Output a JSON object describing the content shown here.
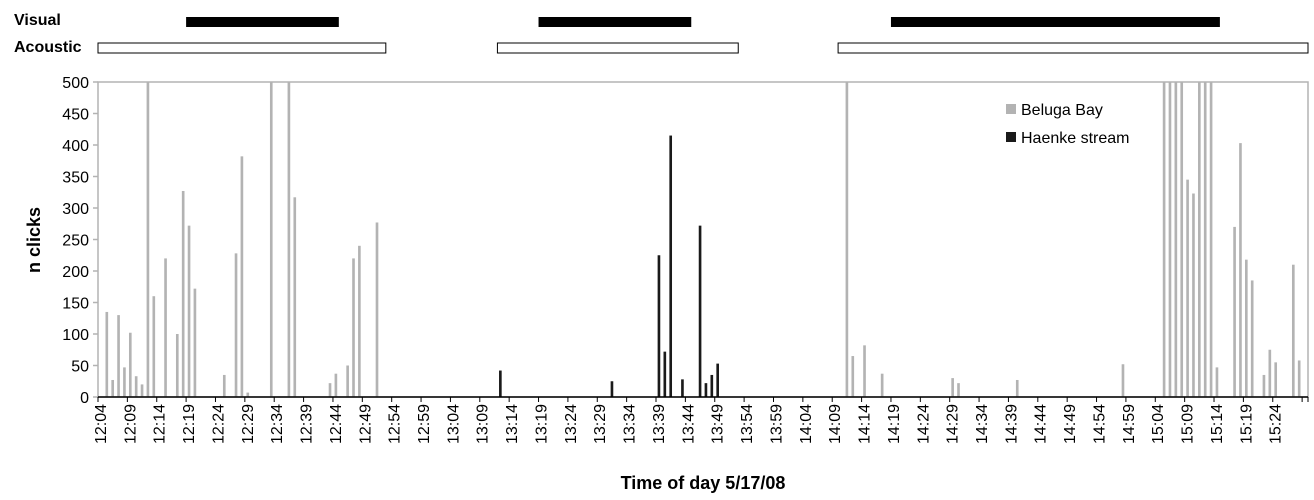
{
  "chart_data": {
    "type": "bar",
    "xlabel": "Time of day 5/17/08",
    "ylabel": "n clicks",
    "ylim": [
      0,
      500
    ],
    "yticks": [
      0,
      50,
      100,
      150,
      200,
      250,
      300,
      350,
      400,
      450,
      500
    ],
    "legend_position": "top-right",
    "time_start": "12:04",
    "time_end": "15:29",
    "tick_labels": [
      "12:04",
      "12:09",
      "12:14",
      "12:19",
      "12:24",
      "12:29",
      "12:34",
      "12:39",
      "12:44",
      "12:49",
      "12:54",
      "12:59",
      "13:04",
      "13:09",
      "13:14",
      "13:19",
      "13:24",
      "13:29",
      "13:34",
      "13:39",
      "13:44",
      "13:49",
      "13:54",
      "13:59",
      "14:04",
      "14:09",
      "14:14",
      "14:19",
      "14:24",
      "14:29",
      "14:34",
      "14:39",
      "14:44",
      "14:49",
      "14:54",
      "14:59",
      "15:04",
      "15:09",
      "15:14",
      "15:19",
      "15:24"
    ],
    "series": [
      {
        "name": "Beluga Bay",
        "color": "#b3b3b3",
        "points": [
          [
            "12:05",
            135
          ],
          [
            "12:06",
            27
          ],
          [
            "12:07",
            130
          ],
          [
            "12:08",
            47
          ],
          [
            "12:09",
            102
          ],
          [
            "12:10",
            33
          ],
          [
            "12:11",
            20
          ],
          [
            "12:12",
            500
          ],
          [
            "12:13",
            160
          ],
          [
            "12:15",
            220
          ],
          [
            "12:17",
            100
          ],
          [
            "12:18",
            327
          ],
          [
            "12:19",
            272
          ],
          [
            "12:20",
            172
          ],
          [
            "12:25",
            35
          ],
          [
            "12:27",
            228
          ],
          [
            "12:28",
            382
          ],
          [
            "12:29",
            7
          ],
          [
            "12:33",
            500
          ],
          [
            "12:36",
            500
          ],
          [
            "12:37",
            317
          ],
          [
            "12:43",
            22
          ],
          [
            "12:44",
            37
          ],
          [
            "12:46",
            50
          ],
          [
            "12:47",
            220
          ],
          [
            "12:48",
            240
          ],
          [
            "12:51",
            277
          ],
          [
            "14:11",
            500
          ],
          [
            "14:12",
            65
          ],
          [
            "14:14",
            82
          ],
          [
            "14:17",
            37
          ],
          [
            "14:29",
            30
          ],
          [
            "14:30",
            22
          ],
          [
            "14:40",
            27
          ],
          [
            "14:58",
            52
          ],
          [
            "15:05",
            500
          ],
          [
            "15:06",
            500
          ],
          [
            "15:07",
            500
          ],
          [
            "15:08",
            500
          ],
          [
            "15:09",
            345
          ],
          [
            "15:10",
            323
          ],
          [
            "15:11",
            500
          ],
          [
            "15:12",
            500
          ],
          [
            "15:13",
            500
          ],
          [
            "15:14",
            47
          ],
          [
            "15:17",
            270
          ],
          [
            "15:18",
            403
          ],
          [
            "15:19",
            218
          ],
          [
            "15:20",
            185
          ],
          [
            "15:22",
            35
          ],
          [
            "15:23",
            75
          ],
          [
            "15:24",
            55
          ],
          [
            "15:27",
            210
          ],
          [
            "15:28",
            58
          ]
        ]
      },
      {
        "name": "Haenke stream",
        "color": "#1a1a1a",
        "points": [
          [
            "13:12",
            42
          ],
          [
            "13:31",
            25
          ],
          [
            "13:39",
            225
          ],
          [
            "13:40",
            72
          ],
          [
            "13:41",
            415
          ],
          [
            "13:43",
            28
          ],
          [
            "13:46",
            272
          ],
          [
            "13:47",
            22
          ],
          [
            "13:48",
            35
          ],
          [
            "13:49",
            53
          ]
        ]
      }
    ],
    "observation_bars": [
      {
        "label": "Visual",
        "segments": [
          [
            "12:19",
            "12:44"
          ],
          [
            "13:19",
            "13:44"
          ],
          [
            "14:19",
            "15:14"
          ]
        ]
      },
      {
        "label": "Acoustic",
        "segments": [
          [
            "12:04",
            "12:52"
          ],
          [
            "13:12",
            "13:52"
          ],
          [
            "14:10",
            "15:29"
          ]
        ]
      }
    ]
  }
}
